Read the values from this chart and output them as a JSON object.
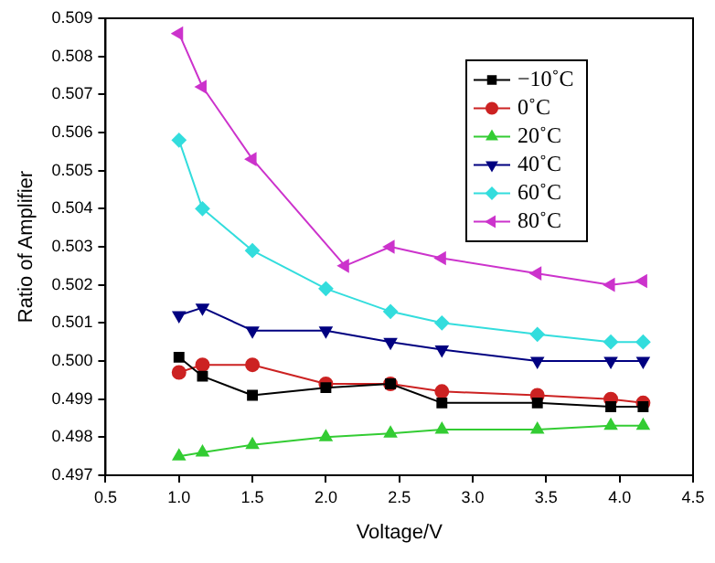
{
  "chart_data": {
    "type": "line",
    "xlabel": "Voltage/V",
    "ylabel": "Ratio of Amplifier",
    "x": [
      1.0,
      1.16,
      1.5,
      2.0,
      2.44,
      2.79,
      3.44,
      3.94,
      4.16
    ],
    "series": [
      {
        "name": "−10˚C",
        "color": "#000000",
        "marker": "square",
        "values": [
          0.5001,
          0.4996,
          0.4991,
          0.4993,
          0.4994,
          0.4989,
          0.4989,
          0.4988,
          0.4988
        ]
      },
      {
        "name": "0˚C",
        "color": "#cc2222",
        "marker": "circle",
        "values": [
          0.4997,
          0.4999,
          0.4999,
          0.4994,
          0.4994,
          0.4992,
          0.4991,
          0.499,
          0.4989
        ]
      },
      {
        "name": "20˚C",
        "color": "#33cc33",
        "marker": "triangle",
        "values": [
          0.4975,
          0.4976,
          0.4978,
          0.498,
          0.4981,
          0.4982,
          0.4982,
          0.4983,
          0.4983
        ]
      },
      {
        "name": "40˚C",
        "color": "#000080",
        "marker": "triangle-down",
        "values": [
          0.5012,
          0.5014,
          0.5008,
          0.5008,
          0.5005,
          0.5003,
          0.5,
          0.5,
          0.5
        ]
      },
      {
        "name": "60˚C",
        "color": "#33dddd",
        "marker": "diamond",
        "values": [
          0.5058,
          0.504,
          0.5029,
          0.5019,
          0.5013,
          0.501,
          0.5007,
          0.5005,
          0.5005
        ]
      },
      {
        "name": "80˚C",
        "color": "#cc33cc",
        "marker": "triangle-left",
        "x": [
          1.0,
          1.16,
          1.5,
          2.13,
          2.44,
          2.79,
          3.44,
          3.94,
          4.16
        ],
        "values": [
          0.5086,
          0.5072,
          0.5053,
          0.5025,
          0.503,
          0.5027,
          0.5023,
          0.502,
          0.5021
        ]
      }
    ],
    "xlim": [
      0.5,
      4.5
    ],
    "xticks": [
      {
        "value": 0.5,
        "label": "0.5"
      },
      {
        "value": 1,
        "label": "1.0"
      },
      {
        "value": 1.5,
        "label": "1.5"
      },
      {
        "value": 2,
        "label": "2.0"
      },
      {
        "value": 2.5,
        "label": "2.5"
      },
      {
        "value": 3,
        "label": "3.0"
      },
      {
        "value": 3.5,
        "label": "3.5"
      },
      {
        "value": 4,
        "label": "4.0"
      },
      {
        "value": 4.5,
        "label": "4.5"
      }
    ],
    "ylim": [
      0.497,
      0.509
    ],
    "yticks": [
      {
        "value": 0.497,
        "label": "0.497"
      },
      {
        "value": 0.498,
        "label": "0.498"
      },
      {
        "value": 0.499,
        "label": "0.499"
      },
      {
        "value": 0.5,
        "label": "0.500"
      },
      {
        "value": 0.501,
        "label": "0.501"
      },
      {
        "value": 0.502,
        "label": "0.502"
      },
      {
        "value": 0.503,
        "label": "0.503"
      },
      {
        "value": 0.504,
        "label": "0.504"
      },
      {
        "value": 0.505,
        "label": "0.505"
      },
      {
        "value": 0.506,
        "label": "0.506"
      },
      {
        "value": 0.507,
        "label": "0.507"
      },
      {
        "value": 0.508,
        "label": "0.508"
      },
      {
        "value": 0.509,
        "label": "0.509"
      }
    ],
    "grid": false,
    "legend": "top right",
    "line_style": "solid"
  }
}
